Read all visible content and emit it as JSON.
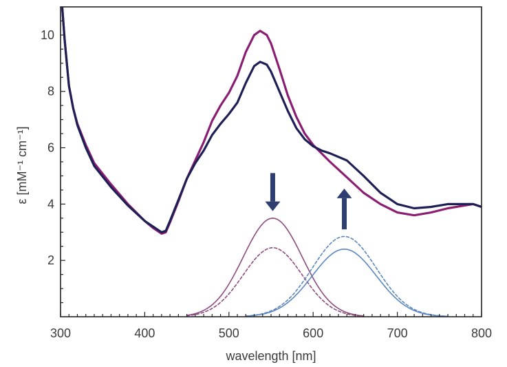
{
  "chart_data": {
    "type": "line",
    "title": "",
    "xlabel": "wavelength [nm]",
    "ylabel": "ε [mM⁻¹ cm⁻¹]",
    "xlim": [
      300,
      800
    ],
    "ylim": [
      0,
      11
    ],
    "x_ticks": [
      300,
      400,
      500,
      600,
      700,
      800
    ],
    "y_ticks": [
      2,
      4,
      6,
      8,
      10
    ],
    "grid": false,
    "legend": "none",
    "series": [
      {
        "color": "#8a1f72",
        "style": "solid-thick",
        "points": [
          [
            302,
            11.0
          ],
          [
            305,
            9.8
          ],
          [
            310,
            8.2
          ],
          [
            315,
            7.4
          ],
          [
            320,
            6.85
          ],
          [
            330,
            6.1
          ],
          [
            340,
            5.45
          ],
          [
            360,
            4.7
          ],
          [
            380,
            4.0
          ],
          [
            400,
            3.4
          ],
          [
            410,
            3.15
          ],
          [
            420,
            2.95
          ],
          [
            425,
            3.0
          ],
          [
            430,
            3.35
          ],
          [
            440,
            4.1
          ],
          [
            450,
            4.9
          ],
          [
            460,
            5.55
          ],
          [
            470,
            6.2
          ],
          [
            480,
            6.95
          ],
          [
            490,
            7.5
          ],
          [
            500,
            7.95
          ],
          [
            510,
            8.55
          ],
          [
            520,
            9.4
          ],
          [
            530,
            10.0
          ],
          [
            537,
            10.15
          ],
          [
            545,
            10.0
          ],
          [
            550,
            9.7
          ],
          [
            560,
            8.8
          ],
          [
            570,
            7.85
          ],
          [
            580,
            7.1
          ],
          [
            590,
            6.5
          ],
          [
            600,
            6.1
          ],
          [
            610,
            5.8
          ],
          [
            620,
            5.5
          ],
          [
            640,
            4.95
          ],
          [
            660,
            4.4
          ],
          [
            680,
            4.0
          ],
          [
            700,
            3.7
          ],
          [
            720,
            3.6
          ],
          [
            740,
            3.7
          ],
          [
            760,
            3.85
          ],
          [
            780,
            3.95
          ],
          [
            790,
            4.0
          ],
          [
            800,
            3.9
          ]
        ]
      },
      {
        "color": "#1e1f55",
        "style": "solid-thick",
        "points": [
          [
            302,
            11.0
          ],
          [
            305,
            9.8
          ],
          [
            310,
            8.2
          ],
          [
            315,
            7.4
          ],
          [
            320,
            6.8
          ],
          [
            330,
            6.0
          ],
          [
            340,
            5.35
          ],
          [
            360,
            4.6
          ],
          [
            380,
            3.95
          ],
          [
            400,
            3.4
          ],
          [
            410,
            3.2
          ],
          [
            420,
            3.0
          ],
          [
            425,
            3.05
          ],
          [
            430,
            3.4
          ],
          [
            440,
            4.15
          ],
          [
            450,
            4.9
          ],
          [
            460,
            5.45
          ],
          [
            470,
            5.9
          ],
          [
            480,
            6.45
          ],
          [
            490,
            6.85
          ],
          [
            500,
            7.2
          ],
          [
            510,
            7.6
          ],
          [
            520,
            8.3
          ],
          [
            530,
            8.9
          ],
          [
            537,
            9.05
          ],
          [
            545,
            8.95
          ],
          [
            550,
            8.7
          ],
          [
            560,
            8.0
          ],
          [
            570,
            7.3
          ],
          [
            580,
            6.7
          ],
          [
            590,
            6.3
          ],
          [
            600,
            6.05
          ],
          [
            610,
            5.9
          ],
          [
            620,
            5.8
          ],
          [
            640,
            5.55
          ],
          [
            660,
            5.0
          ],
          [
            680,
            4.4
          ],
          [
            700,
            4.0
          ],
          [
            720,
            3.85
          ],
          [
            740,
            3.9
          ],
          [
            760,
            4.0
          ],
          [
            780,
            4.0
          ],
          [
            790,
            4.0
          ],
          [
            800,
            3.9
          ]
        ]
      },
      {
        "color": "#8c4a7e",
        "style": "solid-thin",
        "gaussian": {
          "center": 552,
          "amplitude": 3.5,
          "sigma": 35,
          "range": [
            450,
            660
          ]
        }
      },
      {
        "color": "#8c4a7e",
        "style": "dashed",
        "gaussian": {
          "center": 552,
          "amplitude": 2.45,
          "sigma": 35,
          "range": [
            450,
            660
          ]
        }
      },
      {
        "color": "#5b85bf",
        "style": "solid-thin",
        "gaussian": {
          "center": 637,
          "amplitude": 2.4,
          "sigma": 38,
          "range": [
            520,
            760
          ]
        }
      },
      {
        "color": "#5b85bf",
        "style": "dashed",
        "gaussian": {
          "center": 637,
          "amplitude": 2.85,
          "sigma": 38,
          "range": [
            520,
            760
          ]
        }
      }
    ],
    "annotations": [
      {
        "type": "arrow",
        "direction": "down",
        "x": 552,
        "y_from": 5.1,
        "y_to": 3.75,
        "color": "#2e3e6e"
      },
      {
        "type": "arrow",
        "direction": "up",
        "x": 637,
        "y_from": 3.1,
        "y_to": 4.55,
        "color": "#2e3e6e"
      }
    ]
  }
}
